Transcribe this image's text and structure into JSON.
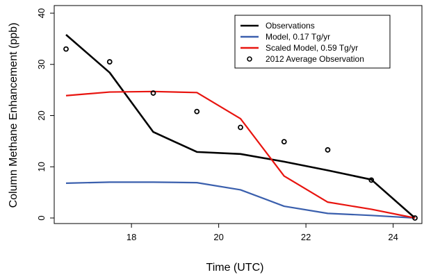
{
  "chart_data": {
    "type": "line",
    "xlabel": "Time (UTC)",
    "ylabel": "Column Methane Enhancement (ppb)",
    "xlim": [
      16.5,
      24.5
    ],
    "ylim": [
      0,
      40
    ],
    "x_ticks": [
      18,
      20,
      22,
      24
    ],
    "y_ticks": [
      0,
      10,
      20,
      30,
      40
    ],
    "grid": false,
    "legend_position": "top-right",
    "x": [
      16.5,
      17.5,
      18.5,
      19.5,
      20.5,
      21.5,
      22.5,
      23.5,
      24.5
    ],
    "series": [
      {
        "name": "Observations",
        "kind": "line",
        "color": "#000000",
        "values": [
          35.8,
          28.4,
          16.8,
          12.9,
          12.5,
          11.0,
          9.3,
          7.5,
          0.0
        ]
      },
      {
        "name": "Model, 0.17 Tg/yr",
        "kind": "line",
        "color": "#3a5fad",
        "values": [
          6.8,
          7.0,
          7.0,
          6.9,
          5.5,
          2.3,
          0.9,
          0.5,
          0.0
        ]
      },
      {
        "name": "Scaled Model, 0.59 Tg/yr",
        "kind": "line",
        "color": "#e8140f",
        "values": [
          23.9,
          24.6,
          24.7,
          24.5,
          19.4,
          8.2,
          3.1,
          1.7,
          0.0
        ]
      },
      {
        "name": "2012 Average Observation",
        "kind": "points",
        "color": "#000000",
        "values": [
          33.0,
          30.5,
          24.4,
          20.8,
          17.7,
          14.9,
          13.3,
          7.4,
          0.0
        ]
      }
    ]
  }
}
